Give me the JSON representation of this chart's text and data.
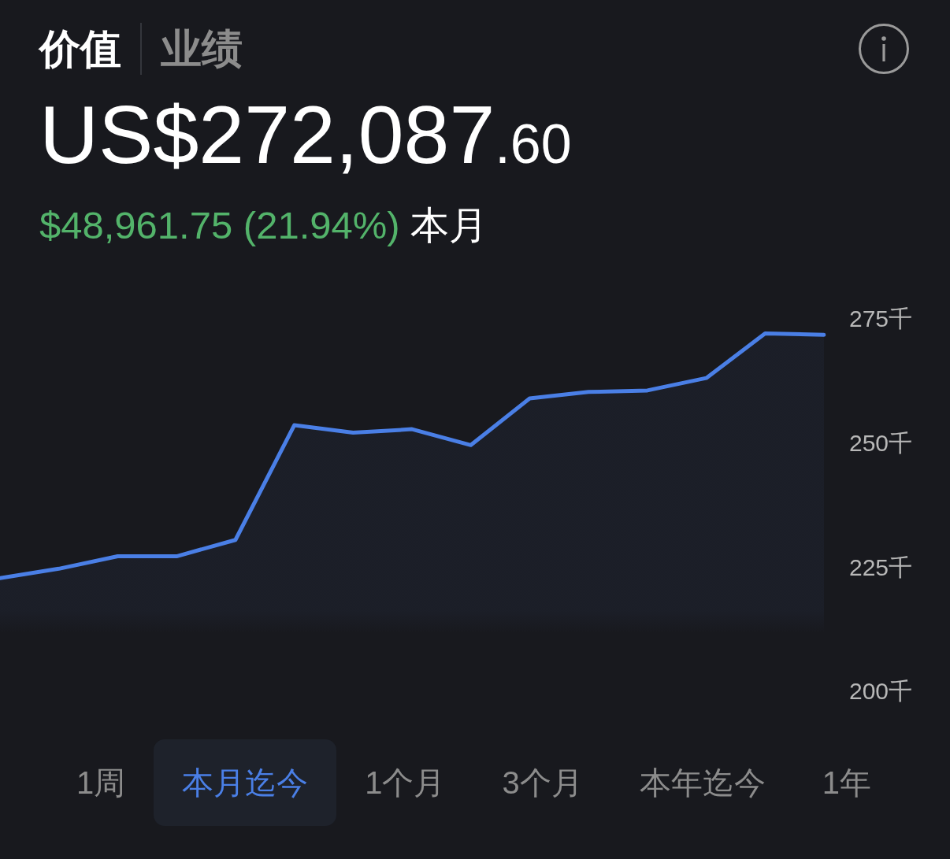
{
  "chart_data": {
    "type": "area",
    "title": "US$272,087.60",
    "subtitle": "$48,961.75 (21.94%) 本月",
    "annotations": [
      "价值",
      "业绩",
      "1周",
      "本月迄今",
      "1个月",
      "3个月",
      "本年迄今",
      "1年"
    ],
    "categories": [
      null,
      null,
      null,
      null,
      null,
      null,
      null,
      null,
      null,
      null,
      null,
      null,
      null,
      null,
      null
    ],
    "series": [
      {
        "color": "#4a7fe6",
        "values": [
          223.1,
          225.0,
          227.5,
          227.5,
          230.8,
          253.9,
          252.4,
          253.1,
          249.9,
          259.3,
          260.6,
          260.9,
          263.4,
          272.4,
          272.1
        ]
      }
    ],
    "ylim": [
      200,
      275
    ],
    "yticks": [
      {
        "value": 200,
        "label": "200千"
      },
      {
        "value": 225,
        "label": "225千"
      },
      {
        "value": 250,
        "label": "250千"
      },
      {
        "value": 275,
        "label": "275千"
      }
    ],
    "tick_labels": "y"
  }
}
